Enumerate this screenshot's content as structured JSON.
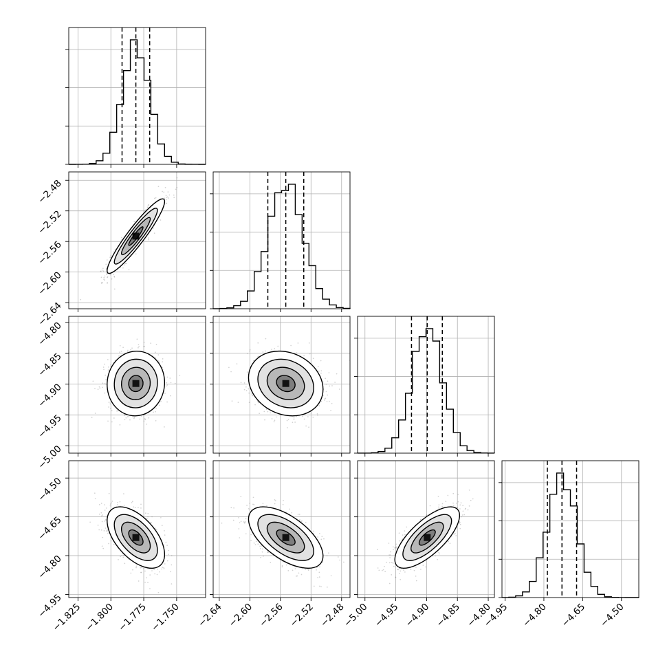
{
  "chart_data": {
    "type": "corner",
    "grid": true,
    "parameters": [
      {
        "ticks": [
          -1.825,
          -1.8,
          -1.775,
          -1.75
        ],
        "range": [
          -1.832,
          -1.728
        ],
        "mean": -1.781,
        "sd": 0.0104,
        "quantiles": [
          -1.7915,
          -1.781,
          -1.7705
        ]
      },
      {
        "ticks": [
          -2.64,
          -2.6,
          -2.56,
          -2.52,
          -2.48
        ],
        "range": [
          -2.648,
          -2.469
        ],
        "mean": -2.553,
        "sd": 0.0232,
        "quantiles": [
          -2.5765,
          -2.553,
          -2.5295
        ]
      },
      {
        "ticks": [
          -5.0,
          -4.95,
          -4.9,
          -4.85,
          -4.8
        ],
        "range": [
          -5.012,
          -4.79
        ],
        "mean": -4.899,
        "sd": 0.025,
        "quantiles": [
          -4.9245,
          -4.899,
          -4.8745
        ]
      },
      {
        "ticks": [
          -4.95,
          -4.8,
          -4.65,
          -4.5
        ],
        "range": [
          -4.962,
          -4.433
        ],
        "mean": -4.73,
        "sd": 0.0565,
        "quantiles": [
          -4.7865,
          -4.73,
          -4.6735
        ]
      }
    ],
    "tick_labels": {
      "p0": [
        "−1.825",
        "−1.800",
        "−1.775",
        "−1.750"
      ],
      "p1": [
        "−2.64",
        "−2.60",
        "−2.56",
        "−2.52",
        "−2.48"
      ],
      "p2": [
        "−5.00",
        "−4.95",
        "−4.90",
        "−4.85",
        "−4.80"
      ],
      "p3": [
        "−4.95",
        "−4.80",
        "−4.65",
        "−4.50"
      ]
    },
    "correlations": {
      "1-0": 0.93,
      "2-0": 0.03,
      "2-1": -0.18,
      "3-0": -0.55,
      "3-1": -0.6,
      "3-2": 0.72
    },
    "hist_bins": 20,
    "quantile_levels": [
      0.16,
      0.5,
      0.84
    ],
    "contour_levels_sigma": [
      0.5,
      1.0,
      1.5,
      2.0
    ]
  }
}
